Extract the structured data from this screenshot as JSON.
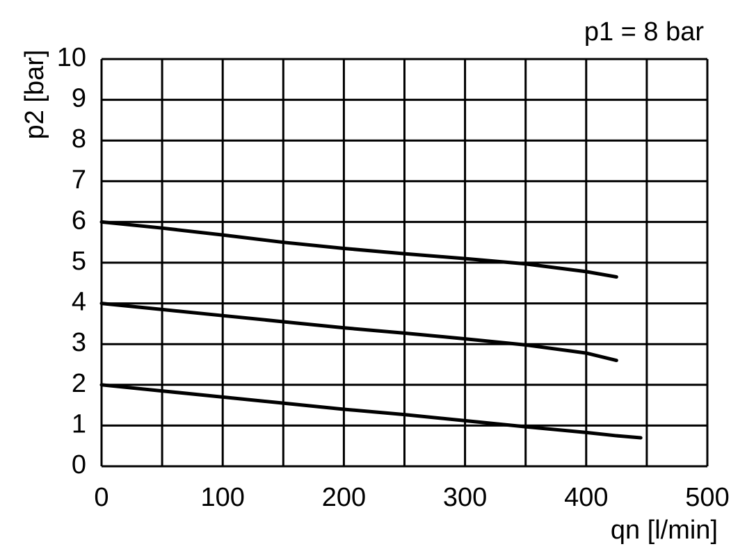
{
  "chart_data": {
    "type": "line",
    "title": "p1 = 8 bar",
    "x_label": "qn [l/min]",
    "y_label": "p2 [bar]",
    "xlim": [
      0,
      500
    ],
    "xticks": [
      0,
      100,
      200,
      300,
      400,
      500
    ],
    "xgrid_minor": [
      50,
      150,
      250,
      350,
      450
    ],
    "ylim": [
      0,
      10
    ],
    "yticks": [
      0,
      1,
      2,
      3,
      4,
      5,
      6,
      7,
      8,
      9,
      10
    ],
    "grid": true,
    "series": [
      {
        "color": "#000000",
        "x": [
          0,
          50,
          100,
          150,
          200,
          250,
          300,
          350,
          400,
          425
        ],
        "values": [
          6.0,
          5.85,
          5.68,
          5.5,
          5.35,
          5.22,
          5.1,
          4.97,
          4.78,
          4.65
        ]
      },
      {
        "color": "#000000",
        "x": [
          0,
          50,
          100,
          150,
          200,
          250,
          300,
          350,
          400,
          425
        ],
        "values": [
          4.0,
          3.85,
          3.7,
          3.55,
          3.4,
          3.27,
          3.13,
          2.98,
          2.78,
          2.6
        ]
      },
      {
        "color": "#000000",
        "x": [
          0,
          50,
          100,
          150,
          200,
          250,
          300,
          350,
          400,
          425,
          445
        ],
        "values": [
          2.0,
          1.85,
          1.7,
          1.55,
          1.4,
          1.27,
          1.12,
          0.97,
          0.83,
          0.75,
          0.7
        ]
      }
    ]
  }
}
